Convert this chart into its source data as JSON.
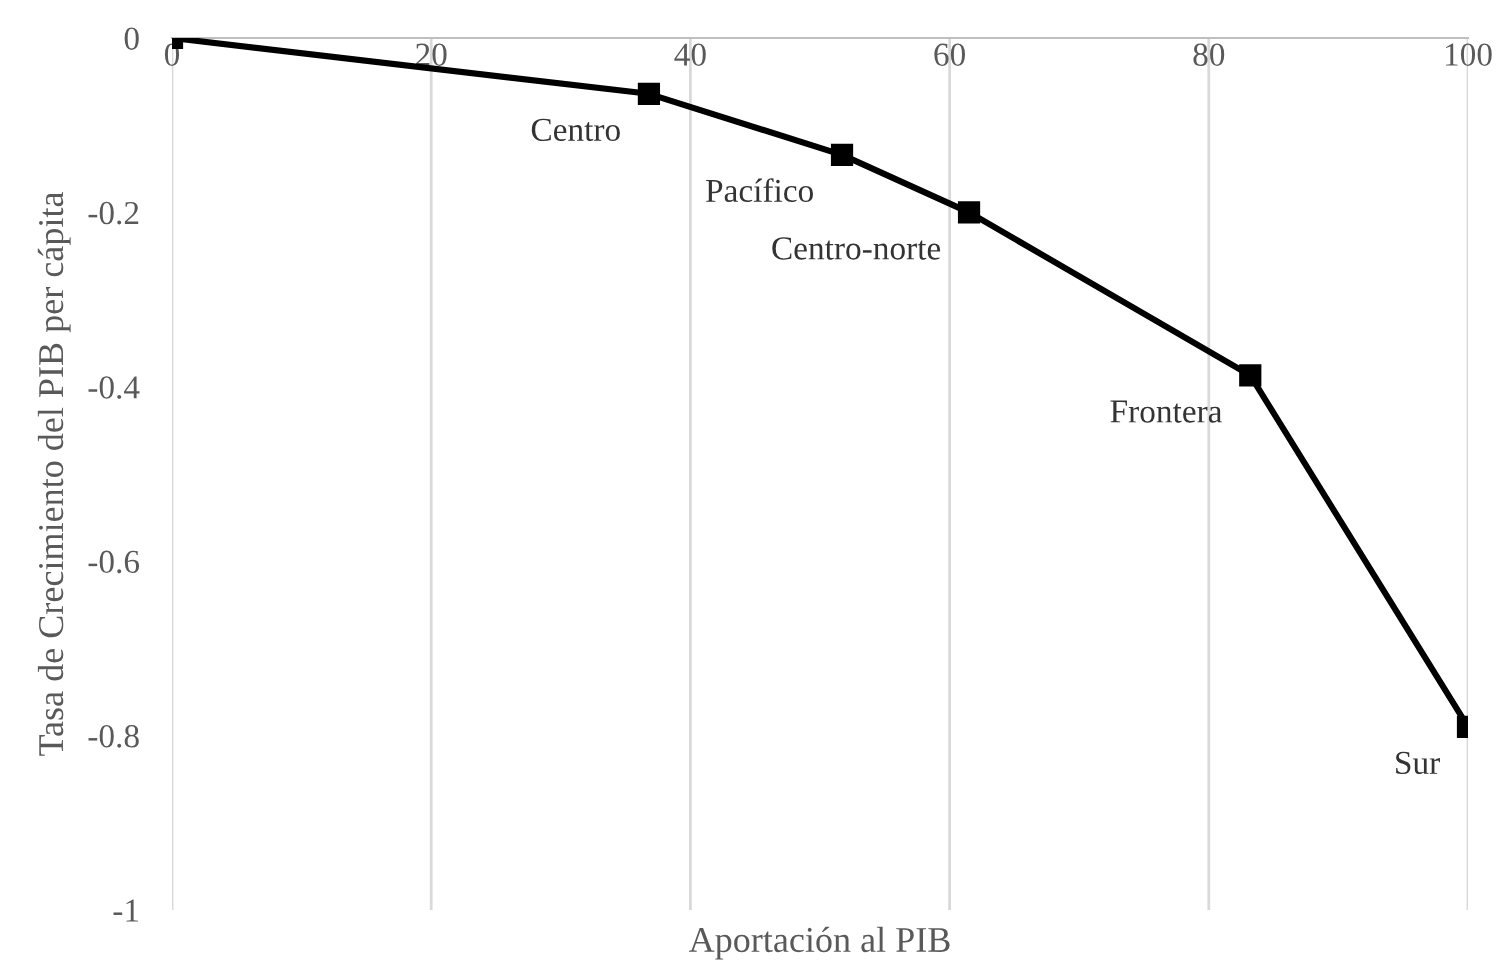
{
  "chart_data": {
    "type": "line",
    "xlabel": "Aportación al PIB",
    "ylabel": "Tasa de Crecimiento del PIB per cápita",
    "x": [
      0,
      36.8,
      51.7,
      61.5,
      83.2,
      100
    ],
    "series": [
      {
        "color": "#000000",
        "values": [
          0,
          -0.064,
          -0.134,
          -0.2,
          -0.387,
          -0.79
        ]
      }
    ],
    "marker": "square",
    "line_style": "solid",
    "grid": "x",
    "xlim": [
      0,
      100
    ],
    "xticks": [
      0,
      20,
      40,
      60,
      80,
      100
    ],
    "ylim": [
      -1,
      0
    ],
    "yticks": [
      -1,
      -0.8,
      -0.6,
      -0.4,
      -0.2,
      0
    ],
    "annotations": [
      {
        "text": "Centro",
        "x": 36.8,
        "y": -0.064
      },
      {
        "text": "Pacífico",
        "x": 51.7,
        "y": -0.134
      },
      {
        "text": "Centro-norte",
        "x": 61.5,
        "y": -0.2
      },
      {
        "text": "Frontera",
        "x": 83.2,
        "y": -0.387
      },
      {
        "text": "Sur",
        "x": 100,
        "y": -0.79
      }
    ]
  }
}
